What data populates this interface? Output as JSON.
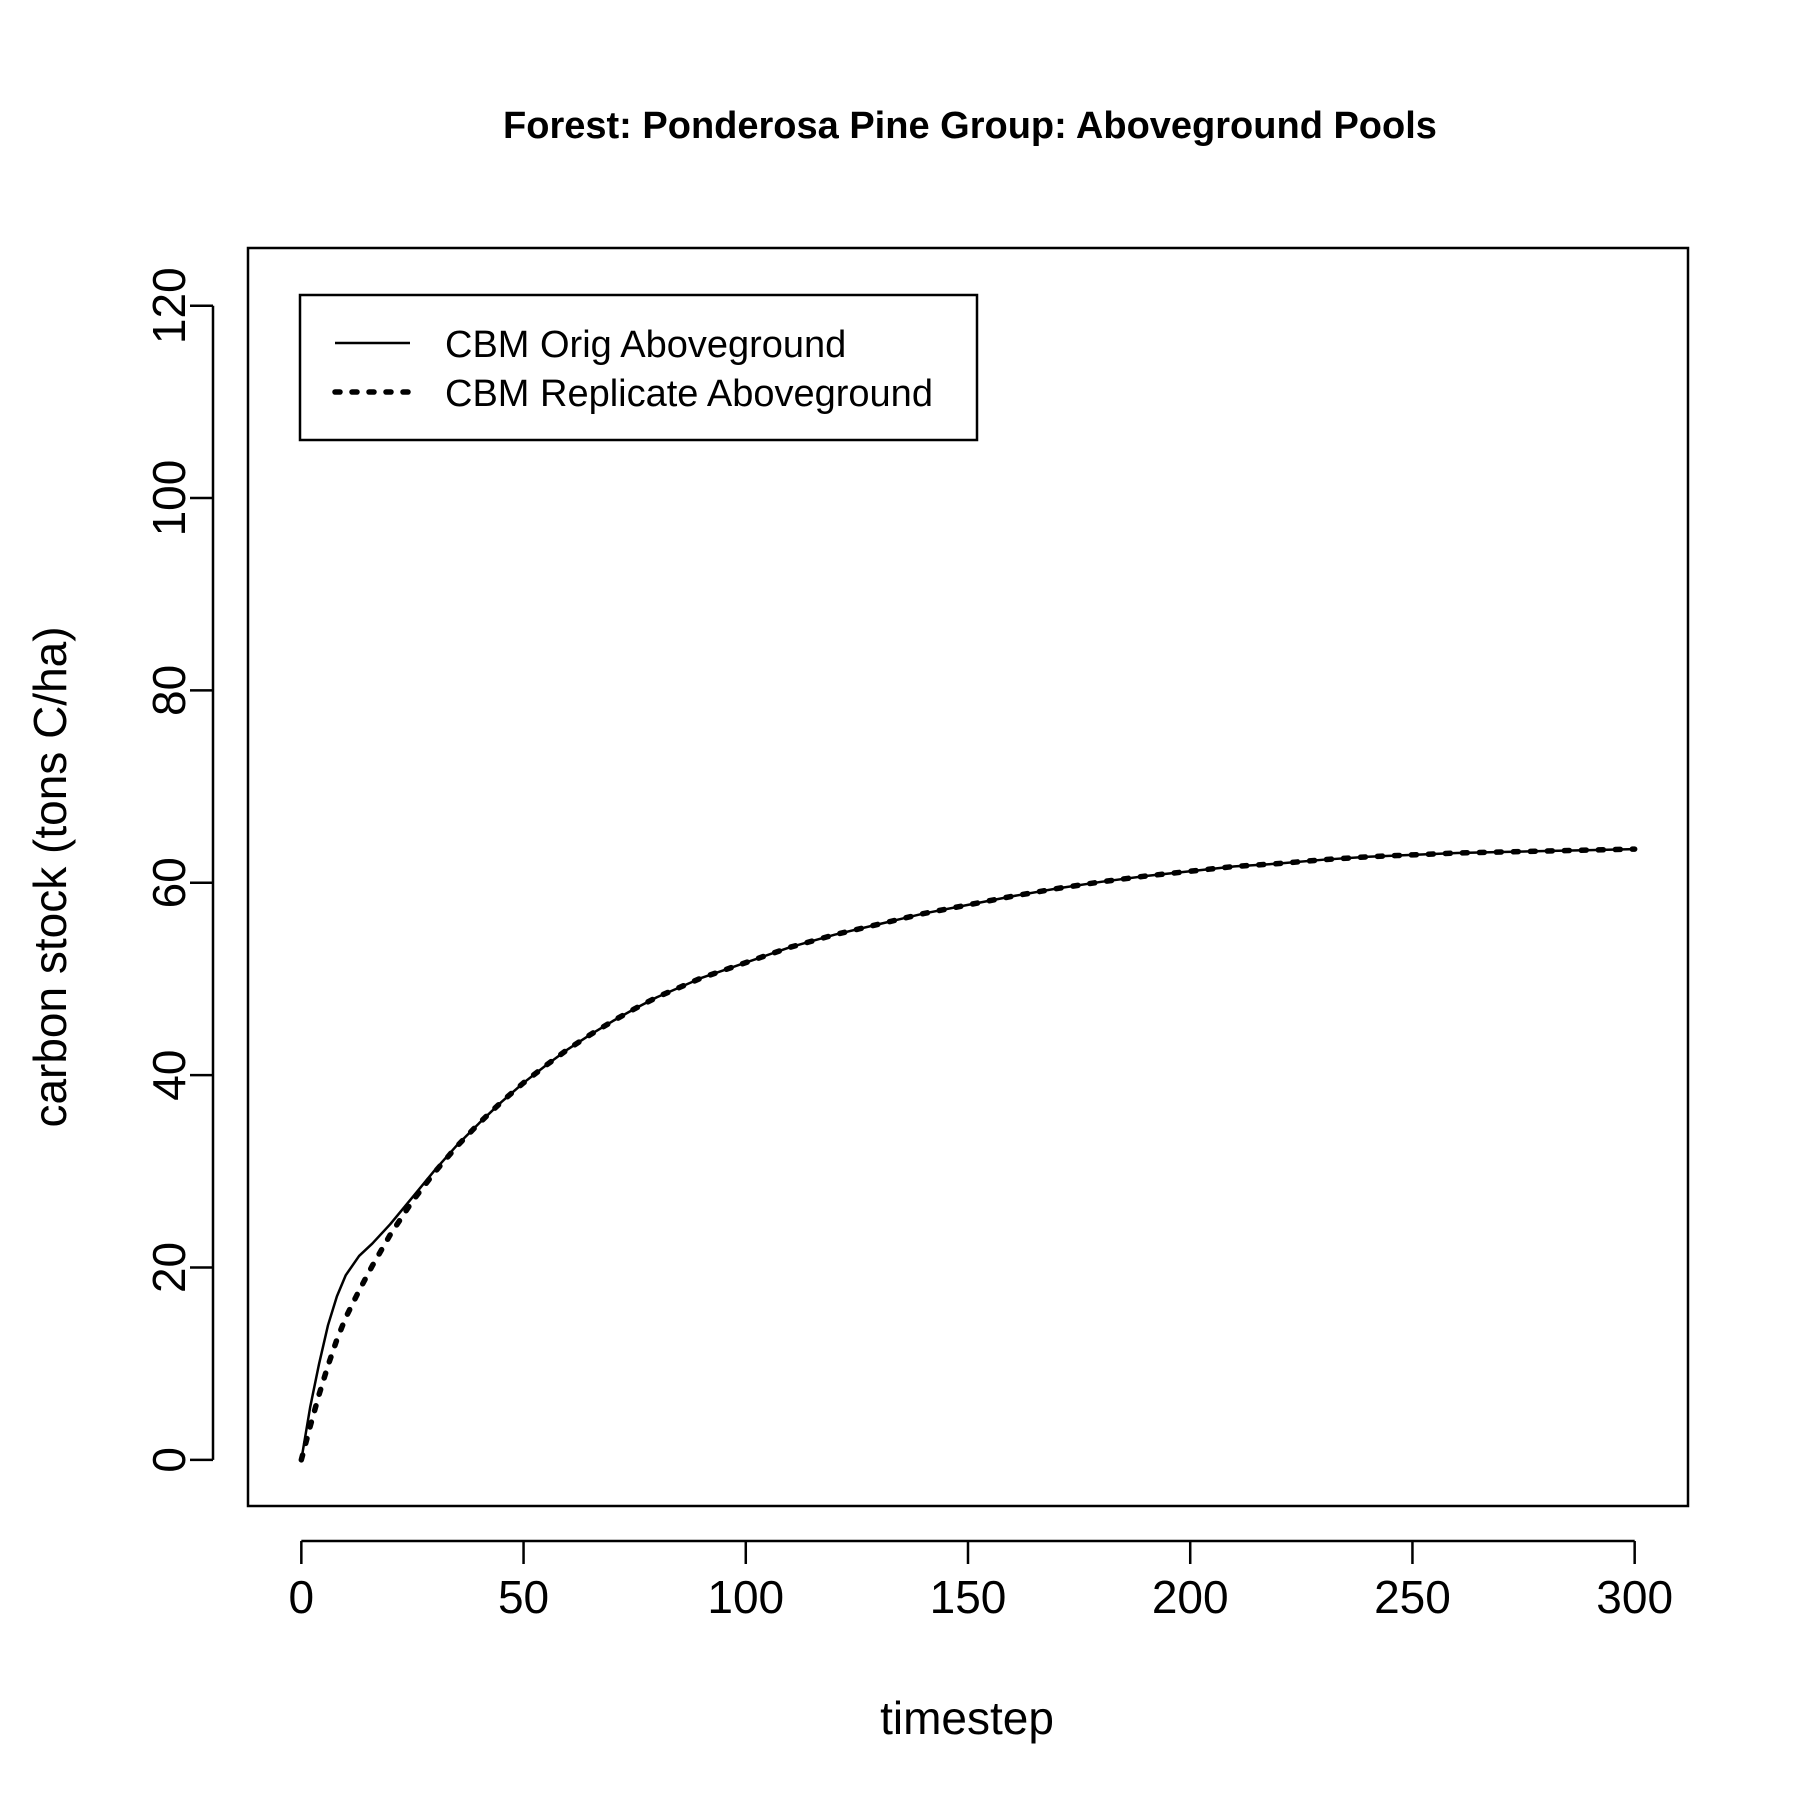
{
  "chart_data": {
    "type": "line",
    "title": "Forest: Ponderosa Pine Group: Aboveground Pools",
    "xlabel": "timestep",
    "ylabel": "carbon stock (tons C/ha)",
    "xlim": [
      -12,
      312
    ],
    "ylim": [
      -4.8,
      126
    ],
    "x_ticks": [
      0,
      50,
      100,
      150,
      200,
      250,
      300
    ],
    "y_ticks": [
      0,
      20,
      40,
      60,
      80,
      100,
      120
    ],
    "grid": false,
    "legend_position": "top-left",
    "series": [
      {
        "name": "CBM Orig Aboveground",
        "line_style": "solid",
        "color": "#000000",
        "x": [
          0,
          2,
          4,
          6,
          8,
          10,
          13,
          16,
          20,
          25,
          30,
          35,
          40,
          45,
          50,
          55,
          60,
          65,
          70,
          75,
          80,
          85,
          90,
          95,
          100,
          110,
          120,
          130,
          140,
          150,
          160,
          170,
          180,
          190,
          200,
          210,
          220,
          230,
          240,
          250,
          260,
          270,
          280,
          290,
          300
        ],
        "y": [
          0,
          5.5,
          10.0,
          14.0,
          17.0,
          19.2,
          21.2,
          22.5,
          24.5,
          27.3,
          30.1,
          32.7,
          35.0,
          37.2,
          39.2,
          41.0,
          42.7,
          44.2,
          45.6,
          46.9,
          48.1,
          49.1,
          50.1,
          50.9,
          51.7,
          53.3,
          54.6,
          55.7,
          56.8,
          57.7,
          58.6,
          59.4,
          60.1,
          60.7,
          61.2,
          61.7,
          62.0,
          62.4,
          62.7,
          62.9,
          63.1,
          63.2,
          63.3,
          63.4,
          63.5
        ]
      },
      {
        "name": "CBM Replicate Aboveground",
        "line_style": "dotted",
        "color": "#000000",
        "x": [
          0,
          2,
          4,
          6,
          8,
          10,
          13,
          16,
          20,
          25,
          30,
          35,
          40,
          45,
          50,
          55,
          60,
          65,
          70,
          75,
          80,
          85,
          90,
          95,
          100,
          110,
          120,
          130,
          140,
          150,
          160,
          170,
          180,
          190,
          200,
          210,
          220,
          230,
          240,
          250,
          260,
          270,
          280,
          290,
          300
        ],
        "y": [
          0,
          3.5,
          6.8,
          9.8,
          12.5,
          14.8,
          17.6,
          20.2,
          23.4,
          26.9,
          29.9,
          32.6,
          35.0,
          37.2,
          39.2,
          41.0,
          42.7,
          44.2,
          45.6,
          46.9,
          48.1,
          49.1,
          50.1,
          50.9,
          51.7,
          53.3,
          54.6,
          55.7,
          56.8,
          57.7,
          58.6,
          59.4,
          60.1,
          60.7,
          61.2,
          61.7,
          62.0,
          62.4,
          62.7,
          62.9,
          63.1,
          63.2,
          63.3,
          63.4,
          63.5
        ]
      }
    ]
  }
}
